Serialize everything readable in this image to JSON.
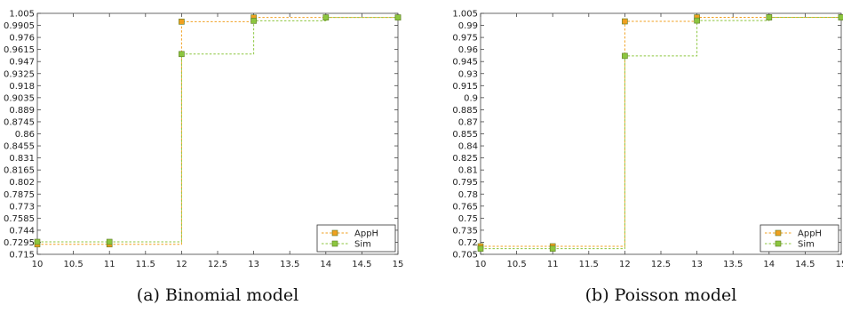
{
  "chart_data": [
    {
      "type": "line",
      "caption": "(a) Binomial model",
      "title": "",
      "xlabel": "",
      "ylabel": "",
      "xlim": [
        10,
        15
      ],
      "ylim": [
        0.715,
        1.005
      ],
      "grid": false,
      "legend_position": "bottom-right",
      "x_ticks": [
        "10",
        "10.5",
        "11",
        "11.5",
        "12",
        "12.5",
        "13",
        "13.5",
        "14",
        "14.5",
        "15"
      ],
      "y_ticks": [
        "0.715",
        "0.7295",
        "0.744",
        "0.7585",
        "0.773",
        "0.7875",
        "0.802",
        "0.8165",
        "0.831",
        "0.8455",
        "0.86",
        "0.8745",
        "0.889",
        "0.9035",
        "0.918",
        "0.9325",
        "0.947",
        "0.9615",
        "0.976",
        "0.9905",
        "1.005"
      ],
      "x": [
        10,
        11,
        12,
        13,
        14,
        15
      ],
      "series": [
        {
          "name": "AppH",
          "color": "#f0a020",
          "values": [
            0.727,
            0.727,
            0.995,
            1.0,
            1.0,
            1.0
          ]
        },
        {
          "name": "Sim",
          "color": "#8cc63f",
          "values": [
            0.73,
            0.73,
            0.956,
            0.996,
            1.0,
            1.0
          ]
        }
      ]
    },
    {
      "type": "line",
      "caption": "(b) Poisson model",
      "title": "",
      "xlabel": "",
      "ylabel": "",
      "xlim": [
        10,
        15
      ],
      "ylim": [
        0.705,
        1.005
      ],
      "grid": false,
      "legend_position": "bottom-right",
      "x_ticks": [
        "10",
        "10.5",
        "11",
        "11.5",
        "12",
        "12.5",
        "13",
        "13.5",
        "14",
        "14.5",
        "15"
      ],
      "y_ticks": [
        "0.705",
        "0.72",
        "0.735",
        "0.75",
        "0.765",
        "0.78",
        "0.795",
        "0.81",
        "0.825",
        "0.84",
        "0.855",
        "0.87",
        "0.885",
        "0.9",
        "0.915",
        "0.93",
        "0.945",
        "0.96",
        "0.975",
        "0.99",
        "1.005"
      ],
      "x": [
        10,
        11,
        12,
        13,
        14,
        15
      ],
      "series": [
        {
          "name": "AppH",
          "color": "#f0a020",
          "values": [
            0.715,
            0.715,
            0.995,
            1.0,
            1.0,
            1.0
          ]
        },
        {
          "name": "Sim",
          "color": "#8cc63f",
          "values": [
            0.712,
            0.712,
            0.952,
            0.996,
            1.0,
            1.0
          ]
        }
      ]
    }
  ]
}
